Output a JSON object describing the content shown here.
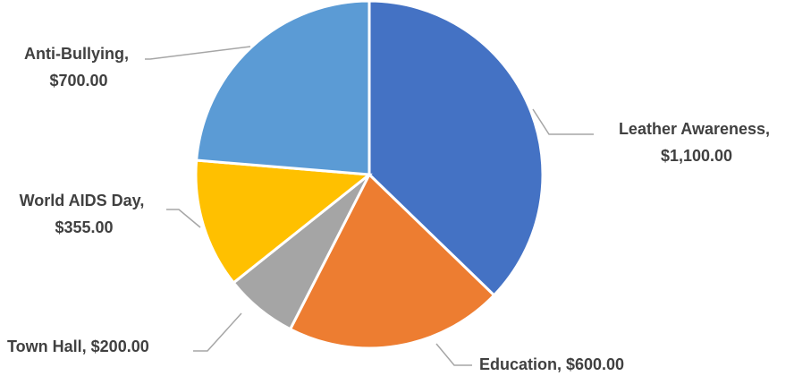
{
  "chart_data": {
    "type": "pie",
    "title": "",
    "slices": [
      {
        "name": "Leather Awareness",
        "value": 1100,
        "value_label": "$1,100.00",
        "color": "#4472C4"
      },
      {
        "name": "Education",
        "value": 600,
        "value_label": "$600.00",
        "color": "#ED7D31"
      },
      {
        "name": "Town Hall",
        "value": 200,
        "value_label": "$200.00",
        "color": "#A5A5A5"
      },
      {
        "name": "World AIDS Day",
        "value": 355,
        "value_label": "$355.00",
        "color": "#FFC000"
      },
      {
        "name": "Anti-Bullying",
        "value": 700,
        "value_label": "$700.00",
        "color": "#5B9BD5"
      }
    ],
    "start_angle": "12 o'clock",
    "direction": "clockwise",
    "legend": "none",
    "data_labels": "category name and value, outside with leader lines"
  }
}
